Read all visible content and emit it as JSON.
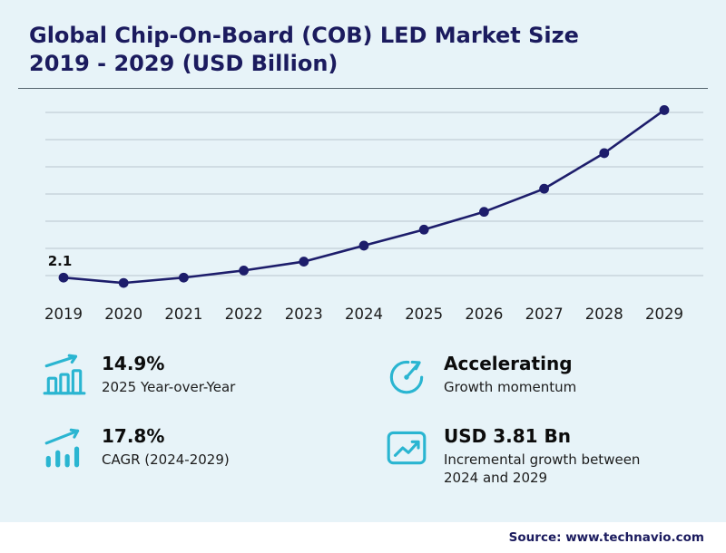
{
  "title": {
    "line1": "Global Chip-On-Board (COB) LED Market Size",
    "line2": "2019 - 2029 (USD Billion)"
  },
  "chart_data": {
    "type": "line",
    "title": "Global Chip-On-Board (COB) LED Market Size 2019 - 2029 (USD Billion)",
    "xlabel": "",
    "ylabel": "",
    "categories": [
      "2019",
      "2020",
      "2021",
      "2022",
      "2023",
      "2024",
      "2025",
      "2026",
      "2027",
      "2028",
      "2029"
    ],
    "values": [
      2.1,
      1.95,
      2.1,
      2.3,
      2.55,
      3.0,
      3.45,
      3.95,
      4.6,
      5.6,
      6.81
    ],
    "labeled_points": [
      {
        "category": "2019",
        "label": "2.1"
      }
    ],
    "point_label": "2.1",
    "ylim": [
      1.8,
      7.0
    ],
    "grid": true,
    "gridline_count": 7,
    "line_color": "#1d1d6b",
    "marker": "filled-circle",
    "legend": "none"
  },
  "stats": [
    {
      "value": "14.9%",
      "label": "2025 Year-over-Year",
      "icon": "bar-chart-rise-icon"
    },
    {
      "value": "Accelerating",
      "label": "Growth momentum",
      "icon": "gauge-icon"
    },
    {
      "value": "17.8%",
      "label": "CAGR (2024-2029)",
      "icon": "bars-arrow-icon"
    },
    {
      "value": "USD 3.81 Bn",
      "label": "Incremental growth between 2024 and 2029",
      "icon": "chart-box-icon"
    }
  ],
  "source": "Source: www.technavio.com",
  "colors": {
    "background": "#e7f3f8",
    "navy": "#1b1b5e",
    "accent": "#2ab5d1",
    "gridline": "#c2ced6",
    "footer_background": "#ffffff"
  }
}
